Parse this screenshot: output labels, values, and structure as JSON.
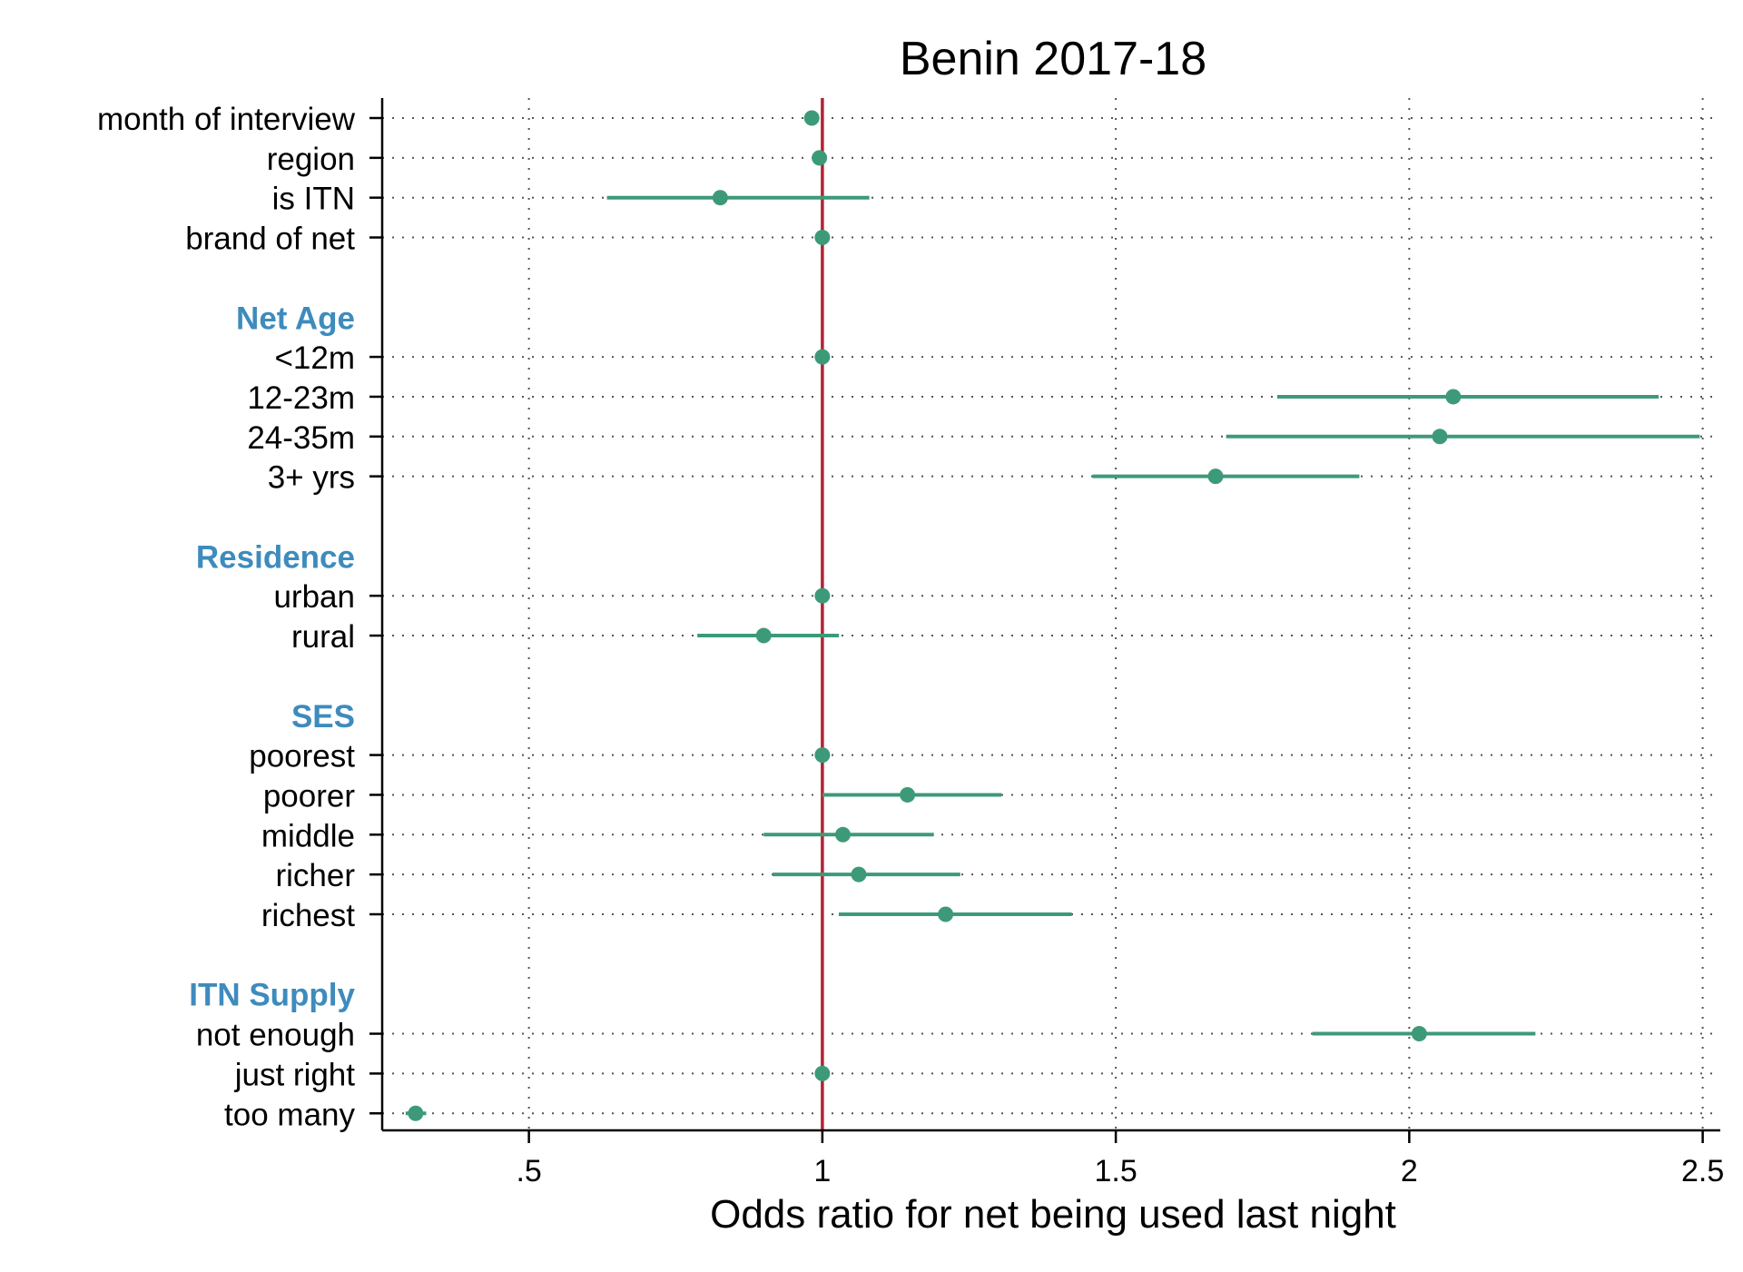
{
  "chart_data": {
    "type": "scatter",
    "subtype": "coefficient plot with confidence intervals",
    "title": "Benin 2017-18",
    "xlabel": "Odds ratio for net being used last night",
    "xlim": [
      0.25,
      2.53
    ],
    "xticks": [
      0.5,
      1,
      1.5,
      2,
      2.5
    ],
    "xtick_labels": [
      ".5",
      "1",
      "1.5",
      "2",
      "2.5"
    ],
    "reference_line": {
      "x": 1,
      "color": "#b22234"
    },
    "grid": true,
    "grid_style": "dotted",
    "colors": {
      "marker": "#3d9a78",
      "group_label": "#3e8bbd",
      "reference": "#b22234",
      "text": "#000000"
    },
    "rows": [
      {
        "kind": "item",
        "label": "month of interview",
        "est": 0.982,
        "lo": null,
        "hi": null
      },
      {
        "kind": "item",
        "label": "region",
        "est": 0.995,
        "lo": null,
        "hi": null
      },
      {
        "kind": "item",
        "label": "is ITN",
        "est": 0.826,
        "lo": 0.633,
        "hi": 1.08
      },
      {
        "kind": "item",
        "label": "brand of net",
        "est": 1.0,
        "lo": null,
        "hi": null
      },
      {
        "kind": "spacer"
      },
      {
        "kind": "group",
        "label": "Net Age"
      },
      {
        "kind": "item",
        "label": "<12m",
        "est": 1.0,
        "lo": null,
        "hi": null
      },
      {
        "kind": "item",
        "label": "12-23m",
        "est": 2.075,
        "lo": 1.775,
        "hi": 2.425
      },
      {
        "kind": "item",
        "label": "24-35m",
        "est": 2.052,
        "lo": 1.688,
        "hi": 2.495
      },
      {
        "kind": "item",
        "label": "3+ yrs",
        "est": 1.67,
        "lo": 1.46,
        "hi": 1.915
      },
      {
        "kind": "spacer"
      },
      {
        "kind": "group",
        "label": "Residence"
      },
      {
        "kind": "item",
        "label": "urban",
        "est": 1.0,
        "lo": null,
        "hi": null
      },
      {
        "kind": "item",
        "label": "rural",
        "est": 0.9,
        "lo": 0.787,
        "hi": 1.028
      },
      {
        "kind": "spacer"
      },
      {
        "kind": "group",
        "label": "SES"
      },
      {
        "kind": "item",
        "label": "poorest",
        "est": 1.0,
        "lo": null,
        "hi": null
      },
      {
        "kind": "item",
        "label": "poorer",
        "est": 1.145,
        "lo": 1.0,
        "hi": 1.305
      },
      {
        "kind": "item",
        "label": "middle",
        "est": 1.035,
        "lo": 0.9,
        "hi": 1.19
      },
      {
        "kind": "item",
        "label": "richer",
        "est": 1.062,
        "lo": 0.915,
        "hi": 1.235
      },
      {
        "kind": "item",
        "label": "richest",
        "est": 1.21,
        "lo": 1.028,
        "hi": 1.425
      },
      {
        "kind": "spacer"
      },
      {
        "kind": "group",
        "label": "ITN Supply"
      },
      {
        "kind": "item",
        "label": "not enough",
        "est": 2.017,
        "lo": 1.835,
        "hi": 2.215
      },
      {
        "kind": "item",
        "label": "just right",
        "est": 1.0,
        "lo": null,
        "hi": null
      },
      {
        "kind": "item",
        "label": "too many",
        "est": 0.307,
        "lo": 0.29,
        "hi": 0.325
      }
    ]
  }
}
